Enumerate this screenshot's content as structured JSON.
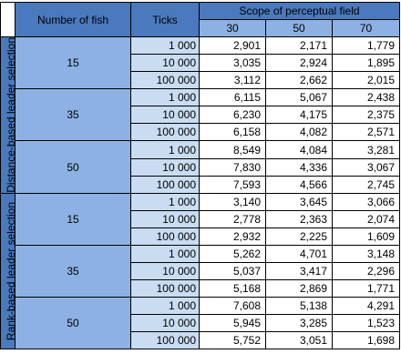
{
  "headers": {
    "number_of_fish": "Number of fish",
    "ticks": "Ticks",
    "scope": "Scope of perceptual field",
    "scope_values": [
      "30",
      "50",
      "70"
    ]
  },
  "groups": [
    {
      "label": "Distance-based leader selection",
      "fish": [
        {
          "count": "15",
          "rows": [
            {
              "ticks": "1 000",
              "values": [
                "2,901",
                "2,171",
                "1,779"
              ]
            },
            {
              "ticks": "10 000",
              "values": [
                "3,035",
                "2,924",
                "1,895"
              ]
            },
            {
              "ticks": "100 000",
              "values": [
                "3,112",
                "2,662",
                "2,015"
              ]
            }
          ]
        },
        {
          "count": "35",
          "rows": [
            {
              "ticks": "1 000",
              "values": [
                "6,115",
                "5,067",
                "2,438"
              ]
            },
            {
              "ticks": "10 000",
              "values": [
                "6,230",
                "4,175",
                "2,375"
              ]
            },
            {
              "ticks": "100 000",
              "values": [
                "6,158",
                "4,082",
                "2,571"
              ]
            }
          ]
        },
        {
          "count": "50",
          "rows": [
            {
              "ticks": "1 000",
              "values": [
                "8,549",
                "4,084",
                "3,281"
              ]
            },
            {
              "ticks": "10 000",
              "values": [
                "7,830",
                "4,336",
                "3,067"
              ]
            },
            {
              "ticks": "100 000",
              "values": [
                "7,593",
                "4,566",
                "2,745"
              ]
            }
          ]
        }
      ]
    },
    {
      "label": "Rank-based leader selection",
      "fish": [
        {
          "count": "15",
          "rows": [
            {
              "ticks": "1 000",
              "values": [
                "3,140",
                "3,645",
                "3,066"
              ]
            },
            {
              "ticks": "10 000",
              "values": [
                "2,778",
                "2,363",
                "2,074"
              ]
            },
            {
              "ticks": "100 000",
              "values": [
                "2,932",
                "2,225",
                "1,609"
              ]
            }
          ]
        },
        {
          "count": "35",
          "rows": [
            {
              "ticks": "1 000",
              "values": [
                "5,262",
                "4,701",
                "3,148"
              ]
            },
            {
              "ticks": "10 000",
              "values": [
                "5,037",
                "3,417",
                "2,296"
              ]
            },
            {
              "ticks": "100 000",
              "values": [
                "5,168",
                "2,869",
                "1,771"
              ]
            }
          ]
        },
        {
          "count": "50",
          "rows": [
            {
              "ticks": "1 000",
              "values": [
                "7,608",
                "5,138",
                "4,291"
              ]
            },
            {
              "ticks": "10 000",
              "values": [
                "5,945",
                "3,285",
                "1,523"
              ]
            },
            {
              "ticks": "100 000",
              "values": [
                "5,752",
                "3,051",
                "1,698"
              ]
            }
          ]
        }
      ]
    }
  ]
}
